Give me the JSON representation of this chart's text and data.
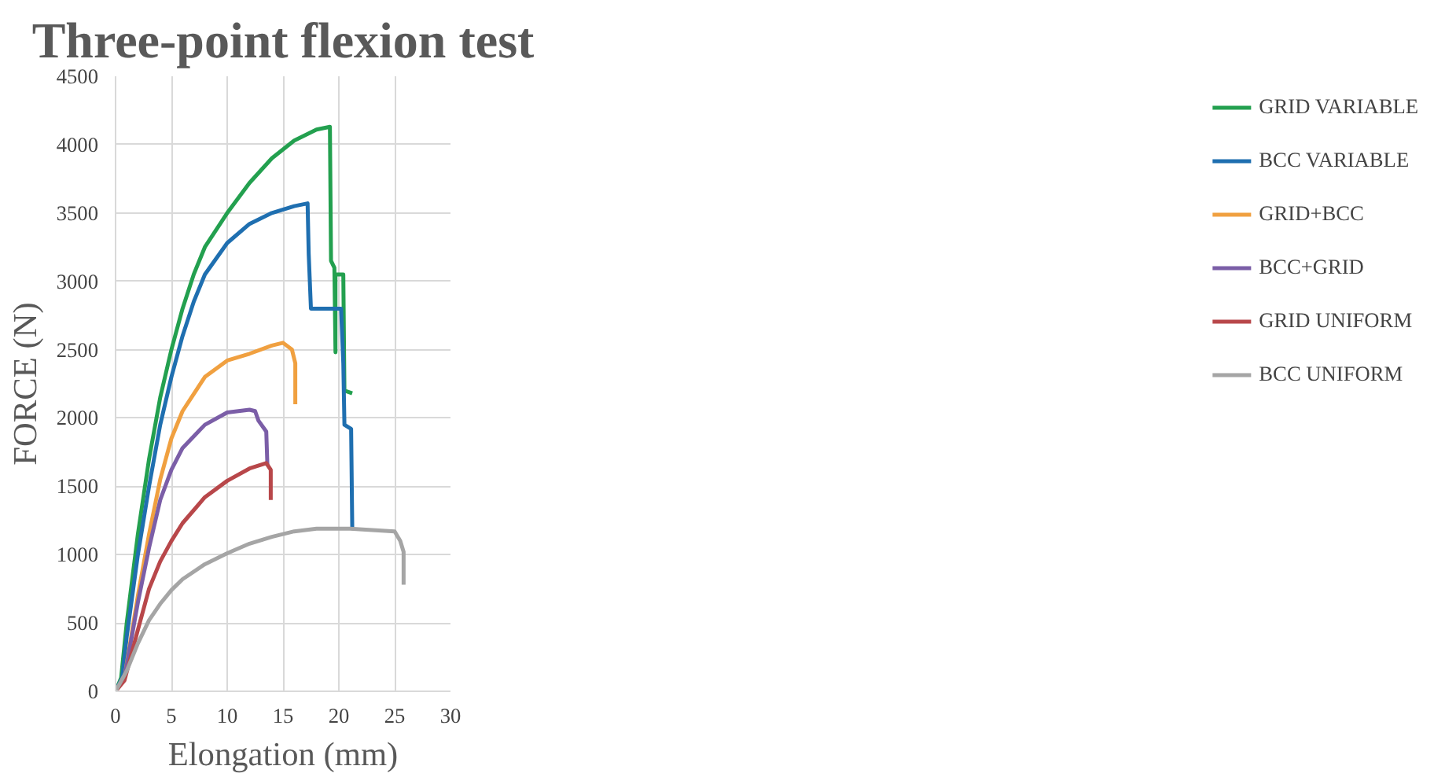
{
  "chart_data": {
    "type": "line",
    "title": "Three-point flexion test",
    "xlabel": "Elongation (mm)",
    "ylabel": "FORCE (N)",
    "xlim": [
      0,
      30
    ],
    "xticks": [
      0,
      5,
      10,
      15,
      20,
      25,
      30
    ],
    "ylim": [
      0,
      4500
    ],
    "yticks": [
      0,
      500,
      1000,
      1500,
      2000,
      2500,
      3000,
      3500,
      4000,
      4500
    ],
    "grid": true,
    "legend": "right",
    "marker": "none",
    "line_style": "solid",
    "series": [
      {
        "name": "GRID VARIABLE",
        "color": "#23a04f",
        "x": [
          0,
          0.5,
          1,
          2,
          3,
          4,
          5,
          6,
          7,
          8,
          10,
          12,
          14,
          16,
          18,
          19.2,
          19.3,
          19.6,
          19.7,
          19.7,
          20.4,
          20.5,
          21.2
        ],
        "values": [
          0,
          100,
          500,
          1150,
          1700,
          2150,
          2500,
          2800,
          3050,
          3250,
          3500,
          3720,
          3900,
          4030,
          4110,
          4130,
          3150,
          3100,
          2480,
          3050,
          3050,
          2200,
          2180
        ]
      },
      {
        "name": "BCC VARIABLE",
        "color": "#1f6fb0",
        "x": [
          0,
          0.6,
          1,
          2,
          3,
          4,
          5,
          6,
          7,
          8,
          10,
          12,
          14,
          16,
          17.2,
          17.3,
          17.5,
          20.2,
          20.4,
          20.5,
          21.1,
          21.2
        ],
        "values": [
          0,
          100,
          400,
          1000,
          1500,
          1950,
          2300,
          2600,
          2850,
          3050,
          3280,
          3420,
          3500,
          3550,
          3570,
          3200,
          2800,
          2800,
          2400,
          1950,
          1920,
          1200
        ]
      },
      {
        "name": "GRID+BCC",
        "color": "#f0a040",
        "x": [
          0,
          0.8,
          2,
          3,
          4,
          5,
          6,
          8,
          10,
          12,
          14,
          15,
          15.8,
          16.1,
          16.1
        ],
        "values": [
          0,
          100,
          700,
          1150,
          1550,
          1850,
          2050,
          2300,
          2420,
          2470,
          2530,
          2550,
          2500,
          2400,
          2100
        ]
      },
      {
        "name": "BCC+GRID",
        "color": "#7b5ea7",
        "x": [
          0,
          0.8,
          2,
          3,
          4,
          5,
          6,
          8,
          10,
          12,
          12.5,
          12.8,
          13.5,
          13.6
        ],
        "values": [
          0,
          100,
          650,
          1050,
          1400,
          1620,
          1780,
          1950,
          2040,
          2060,
          2050,
          1980,
          1900,
          1650
        ]
      },
      {
        "name": "GRID UNIFORM",
        "color": "#b8474a",
        "x": [
          0,
          0.8,
          2,
          3,
          4,
          5,
          6,
          8,
          10,
          12,
          13.5,
          13.9,
          13.9
        ],
        "values": [
          0,
          80,
          450,
          750,
          950,
          1100,
          1230,
          1420,
          1540,
          1630,
          1670,
          1620,
          1400
        ]
      },
      {
        "name": "BCC UNIFORM",
        "color": "#a5a5a5",
        "x": [
          0,
          1,
          2,
          3,
          4,
          5,
          6,
          8,
          10,
          12,
          14,
          16,
          18,
          21,
          25,
          25.5,
          25.8,
          25.8
        ],
        "values": [
          0,
          150,
          350,
          520,
          640,
          740,
          820,
          930,
          1010,
          1080,
          1130,
          1170,
          1190,
          1190,
          1170,
          1100,
          1020,
          780
        ]
      }
    ]
  }
}
